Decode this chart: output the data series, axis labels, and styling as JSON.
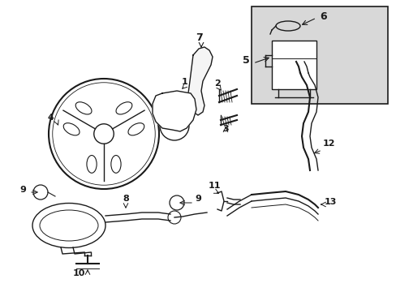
{
  "bg_color": "#ffffff",
  "line_color": "#1a1a1a",
  "box_bg": "#d8d8d8",
  "lw": 1.0,
  "lw2": 1.5,
  "fig_w": 4.89,
  "fig_h": 3.6,
  "dpi": 100
}
